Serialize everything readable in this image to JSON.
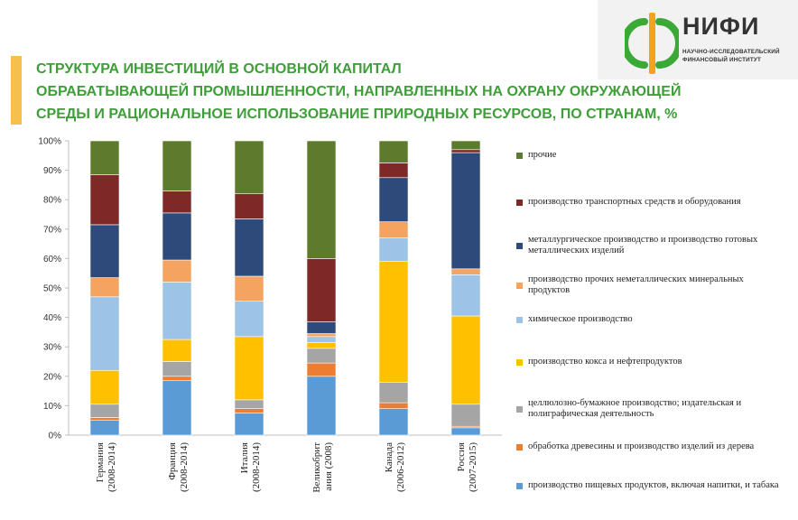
{
  "title": {
    "line1": "СТРУКТУРА ИНВЕСТИЦИЙ В ОСНОВНОЙ КАПИТАЛ",
    "line2": "ОБРАБАТЫВАЮЩЕЙ ПРОМЫШЛЕННОСТИ, НАПРАВЛЕННЫХ НА ОХРАНУ ОКРУЖАЮЩЕЙ",
    "line3": "СРЕДЫ И РАЦИОНАЛЬНОЕ ИСПОЛЬЗОВАНИЕ ПРИРОДНЫХ РЕСУРСОВ, ПО СТРАНАМ, %"
  },
  "logo": {
    "name": "НИФИ",
    "subtitle_line1": "НАУЧНО-ИССЛЕДОВАТЕЛЬСКИЙ",
    "subtitle_line2": "ФИНАНСОВЫЙ ИНСТИТУТ",
    "color_green": "#3aa935",
    "color_orange": "#f5a21a"
  },
  "chart_data": {
    "type": "bar",
    "stacked": true,
    "percent": true,
    "title": "СТРУКТУРА ИНВЕСТИЦИЙ В ОСНОВНОЙ КАПИТАЛ ОБРАБАТЫВАЮЩЕЙ ПРОМЫШЛЕННОСТИ, НАПРАВЛЕННЫХ НА ОХРАНУ ОКРУЖАЮЩЕЙ СРЕДЫ И РАЦИОНАЛЬНОЕ ИСПОЛЬЗОВАНИЕ ПРИРОДНЫХ РЕСУРСОВ, ПО СТРАНАМ, %",
    "xlabel": "",
    "ylabel": "",
    "ylim": [
      0,
      100
    ],
    "yticks": [
      "0%",
      "10%",
      "20%",
      "30%",
      "40%",
      "50%",
      "60%",
      "70%",
      "80%",
      "90%",
      "100%"
    ],
    "grid": false,
    "legend_position": "right",
    "categories": [
      [
        "Германия",
        "(2008-2014)"
      ],
      [
        "Франция",
        "(2008-2014)"
      ],
      [
        "Италия",
        "(2008-2014)"
      ],
      [
        "Великобрит",
        "ания (2008)"
      ],
      [
        "Канада",
        "(2006-2012)"
      ],
      [
        "Россия",
        "(2007-2015)"
      ]
    ],
    "series": [
      {
        "name": "производство пищевых продуктов, включая напитки, и табака",
        "color": "#5b9bd5",
        "values": [
          5,
          18.5,
          7.5,
          20,
          9,
          2.5
        ]
      },
      {
        "name": "обработка древесины и производство изделий из дерева",
        "color": "#ed7d31",
        "values": [
          1,
          1.5,
          1.5,
          4.5,
          2,
          0.5
        ]
      },
      {
        "name": "целлюлозно-бумажное производство; издательская и полиграфическая деятельность",
        "color": "#a5a5a5",
        "values": [
          4.5,
          5,
          3,
          5,
          7,
          7.5
        ]
      },
      {
        "name": "производство кокса и нефтепродуктов",
        "color": "#ffc000",
        "values": [
          11.5,
          7.5,
          21.5,
          2,
          41,
          30
        ]
      },
      {
        "name": "химическое производство",
        "color": "#9dc3e6",
        "values": [
          25,
          19.5,
          12,
          2,
          8,
          14
        ]
      },
      {
        "name": "производство прочих неметаллических минеральных продуктов",
        "color": "#f4a460",
        "values": [
          6.5,
          7.5,
          8.5,
          1,
          5.5,
          2
        ]
      },
      {
        "name": "металлургическое производство и производство готовых металлических изделий",
        "color": "#2e4a7a",
        "values": [
          18,
          16,
          19.5,
          4,
          15,
          39.5
        ]
      },
      {
        "name": "производство транспортных средств и оборудования",
        "color": "#7f2828",
        "values": [
          17,
          7.5,
          8.5,
          21.5,
          5,
          1
        ]
      },
      {
        "name": "прочие",
        "color": "#5e7a2c",
        "values": [
          11.5,
          17,
          18,
          40,
          7.5,
          3
        ]
      }
    ]
  }
}
